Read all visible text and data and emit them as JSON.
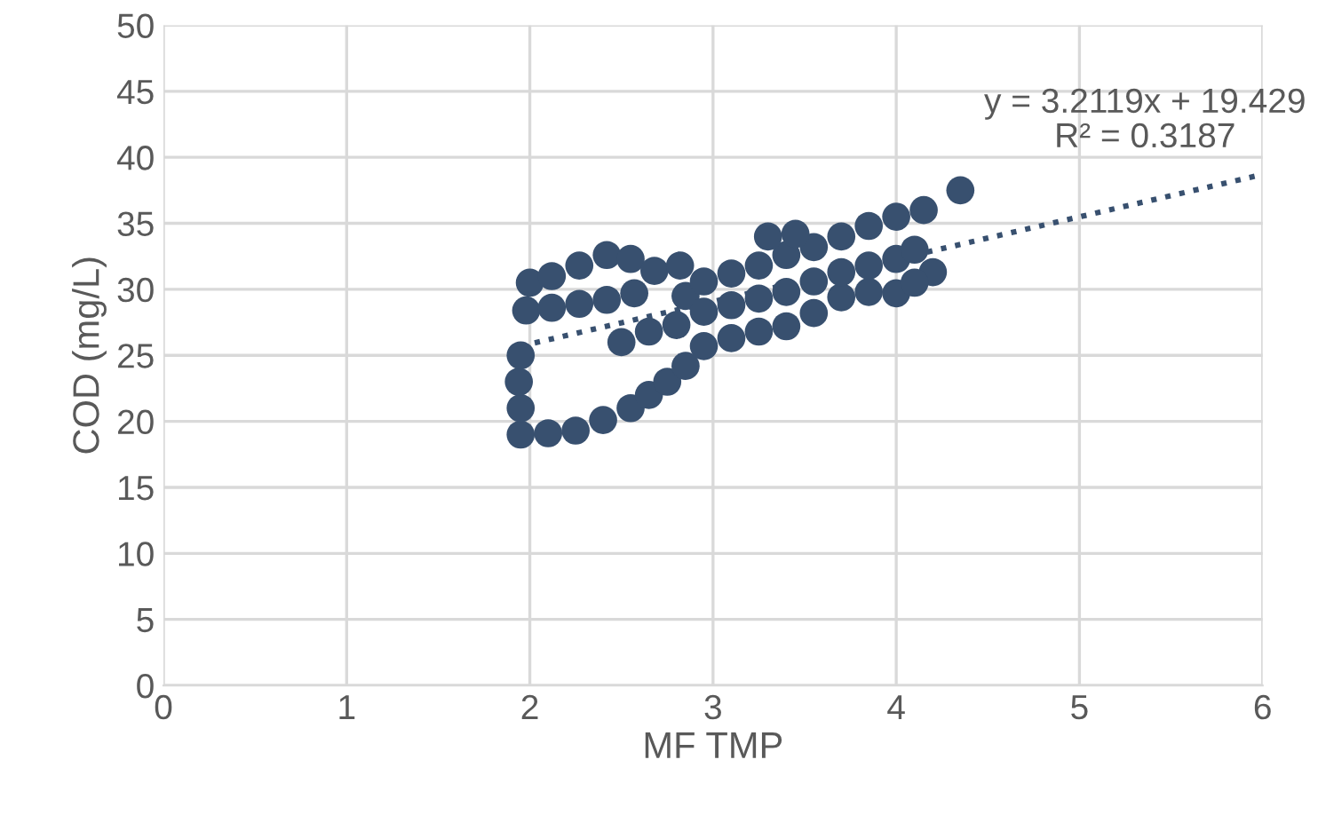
{
  "chart_data": {
    "type": "scatter",
    "xlabel": "MF TMP",
    "ylabel": "COD (mg/L)",
    "xlim": [
      0,
      6
    ],
    "ylim": [
      0,
      50
    ],
    "xticks": [
      0,
      1,
      2,
      3,
      4,
      5,
      6
    ],
    "yticks": [
      0,
      5,
      10,
      15,
      20,
      25,
      30,
      35,
      40,
      45,
      50
    ],
    "grid": true,
    "marker": "circle",
    "series": [
      {
        "color": "#38506f",
        "x": [
          1.95,
          1.95,
          1.94,
          1.95,
          2.1,
          2.25,
          2.4,
          2.55,
          2.65,
          2.75,
          2.85,
          1.98,
          2.0,
          2.12,
          2.27,
          2.42,
          2.55,
          2.68,
          2.82,
          2.12,
          2.27,
          2.42,
          2.57,
          2.5,
          2.65,
          2.8,
          2.85,
          2.95,
          3.1,
          3.25,
          3.4,
          3.55,
          3.7,
          3.85,
          4.0,
          2.95,
          3.1,
          3.25,
          3.4,
          3.55,
          3.7,
          3.85,
          4.0,
          2.95,
          3.1,
          3.25,
          3.4,
          3.55,
          3.7,
          3.85,
          4.0,
          3.3,
          3.45,
          4.15,
          4.35,
          4.1,
          4.2,
          4.1
        ],
        "values": [
          19.0,
          21.0,
          23.0,
          25.0,
          19.1,
          19.3,
          20.1,
          21.0,
          22.0,
          23.0,
          24.2,
          28.4,
          30.5,
          31.0,
          31.8,
          32.6,
          32.3,
          31.4,
          31.8,
          28.6,
          28.9,
          29.2,
          29.7,
          26.0,
          26.8,
          27.3,
          29.5,
          25.7,
          26.3,
          26.8,
          27.2,
          28.2,
          29.4,
          29.8,
          29.7,
          28.3,
          28.8,
          29.3,
          29.8,
          30.6,
          31.3,
          31.8,
          32.3,
          30.6,
          31.2,
          31.8,
          32.6,
          33.2,
          34.0,
          34.8,
          35.5,
          34.0,
          34.2,
          36.0,
          37.5,
          33.0,
          31.3,
          30.5
        ]
      },
      {
        "type": "line",
        "color": "#38506f",
        "line_style": "dotted",
        "marker": "none",
        "x": [
          1.95,
          6
        ],
        "values": [
          25.7,
          38.7
        ]
      }
    ],
    "annotations": [
      "y = 3.2119x + 19.429\nR² = 0.3187"
    ]
  }
}
